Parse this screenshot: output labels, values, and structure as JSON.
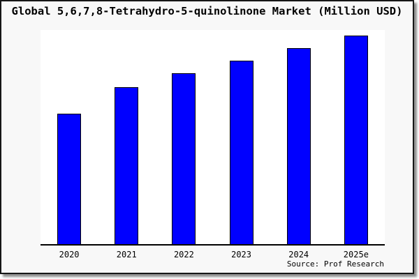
{
  "source": {
    "label": "Source: Prof Research"
  },
  "chart_data": {
    "type": "bar",
    "title": "Global 5,6,7,8-Tetrahydro-5-quinolinone Market (Million USD)",
    "categories": [
      "2020",
      "2021",
      "2022",
      "2023",
      "2024",
      "2025e"
    ],
    "values": [
      62.6,
      75.2,
      81.7,
      87.7,
      93.7,
      100
    ],
    "values_note": "no y-axis ticks or data labels shown; values estimated from bar pixel heights, indexed to 2025e = 100",
    "xlabel": "",
    "ylabel": "",
    "ylim": [
      0,
      102.5
    ],
    "grid": false,
    "legend": false,
    "bar_color": "#0000ff",
    "bar_border_color": "#000000",
    "axis_color": "#000000"
  },
  "colors": {
    "frame_background": "#f8f8f8",
    "plot_background": "#ffffff",
    "frame_border": "#161616",
    "shadow": "#8f8f8f",
    "text": "#000000"
  }
}
